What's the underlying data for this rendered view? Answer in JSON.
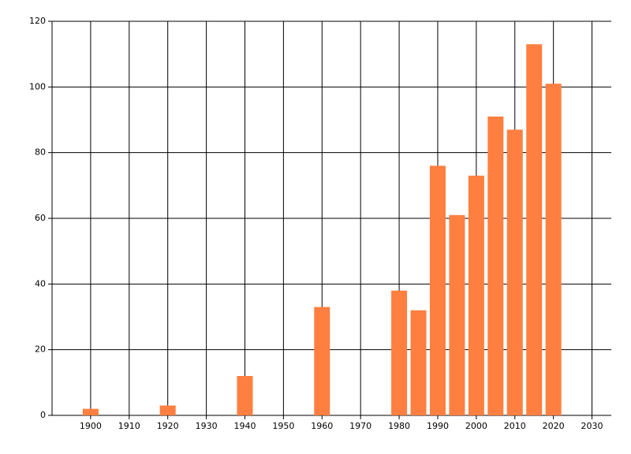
{
  "chart_data": {
    "type": "bar",
    "x": [
      1900,
      1920,
      1940,
      1960,
      1980,
      1985,
      1990,
      1995,
      2000,
      2005,
      2010,
      2015,
      2020
    ],
    "values": [
      2,
      3,
      12,
      33,
      38,
      32,
      76,
      61,
      73,
      91,
      87,
      113,
      101
    ],
    "color": "#ff7f40",
    "xlim": [
      1890,
      2035
    ],
    "xticks": [
      1900,
      1910,
      1920,
      1930,
      1940,
      1950,
      1960,
      1970,
      1980,
      1990,
      2000,
      2010,
      2020,
      2030
    ],
    "ylim": [
      0,
      120
    ],
    "yticks": [
      0,
      20,
      40,
      60,
      80,
      100,
      120
    ],
    "grid": true
  }
}
